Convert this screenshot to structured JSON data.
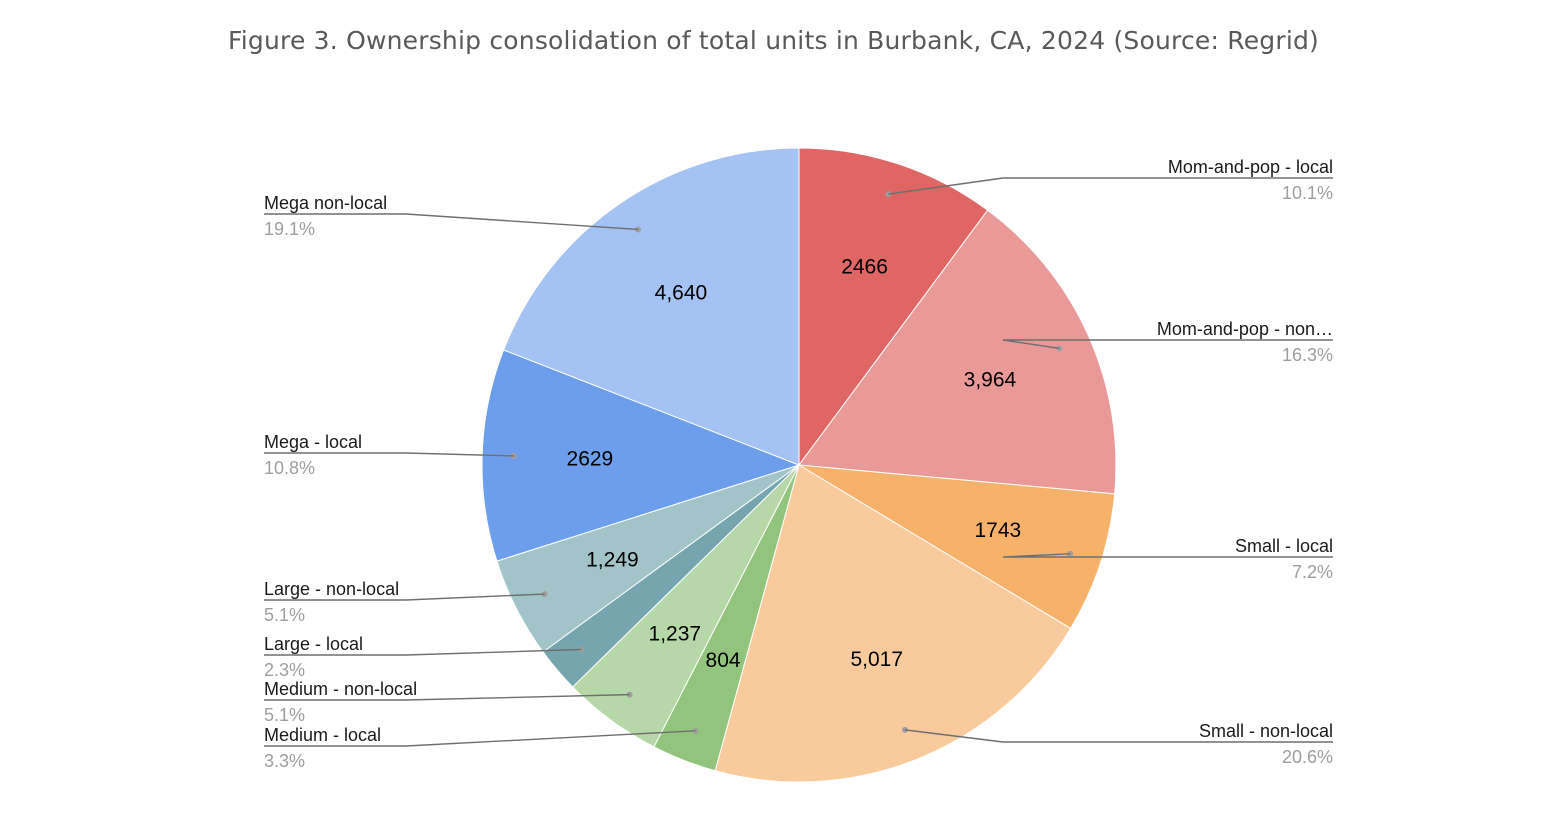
{
  "title": "Figure 3. Ownership consolidation of total units in Burbank, CA, 2024 (Source: Regrid)",
  "chart_data": {
    "type": "pie",
    "title": "Figure 3. Ownership consolidation of total units in Burbank, CA, 2024 (Source: Regrid)",
    "legend": "callout labels",
    "slices": [
      {
        "name": "Mom-and-pop - local",
        "value": 2466,
        "value_label": "2466",
        "percent_label": "10.1%",
        "color": "#e06666",
        "side": "right"
      },
      {
        "name": "Mom-and-pop - non…",
        "value": 3964,
        "value_label": "3,964",
        "percent_label": "16.3%",
        "color": "#ea9999",
        "side": "right"
      },
      {
        "name": "Small - local",
        "value": 1743,
        "value_label": "1743",
        "percent_label": "7.2%",
        "color": "#f6b26b",
        "side": "right"
      },
      {
        "name": "Small - non-local",
        "value": 5017,
        "value_label": "5,017",
        "percent_label": "20.6%",
        "color": "#f9cb9c",
        "side": "right"
      },
      {
        "name": "Medium - local",
        "value": 804,
        "value_label": "804",
        "percent_label": "3.3%",
        "color": "#93c47d",
        "side": "left"
      },
      {
        "name": "Medium - non-local",
        "value": 1237,
        "value_label": "1,237",
        "percent_label": "5.1%",
        "color": "#b6d7a8",
        "side": "left"
      },
      {
        "name": "Large - local",
        "value": 560,
        "value_label": "",
        "percent_label": "2.3%",
        "color": "#76a5af",
        "side": "left"
      },
      {
        "name": "Large - non-local",
        "value": 1249,
        "value_label": "1,249",
        "percent_label": "5.1%",
        "color": "#a2c4c9",
        "side": "left"
      },
      {
        "name": "Mega - local",
        "value": 2629,
        "value_label": "2629",
        "percent_label": "10.8%",
        "color": "#6d9eeb",
        "side": "left"
      },
      {
        "name": "Mega non-local",
        "value": 4640,
        "value_label": "4,640",
        "percent_label": "19.1%",
        "color": "#a4c2f4",
        "side": "left"
      }
    ]
  }
}
